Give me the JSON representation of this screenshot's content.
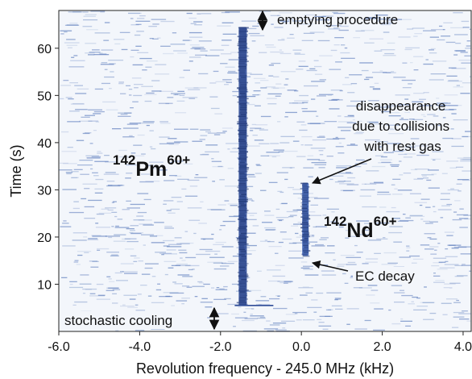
{
  "chart_data": {
    "type": "heatmap",
    "description": "Schottky-spectrum waterfall (revolution frequency vs. time) of stored ions",
    "title": "",
    "xlabel": "Revolution frequency - 245.0 MHz (kHz)",
    "ylabel": "Time (s)",
    "xlim": [
      -6.0,
      4.2
    ],
    "ylim": [
      0,
      68
    ],
    "xticks": [
      "-6.0",
      "-4.0",
      "-2.0",
      "0.0",
      "2.0",
      "4.0"
    ],
    "yticks": [
      "10",
      "20",
      "30",
      "40",
      "50",
      "60"
    ],
    "grid": false,
    "colormap": {
      "low": "#f3f6fb",
      "high": "#2e4a90"
    },
    "series": [
      {
        "label": "142Pm60+",
        "base": "142",
        "element": "Pm",
        "charge": "60+",
        "frequency_khz": -1.45,
        "time_start_s": 5.5,
        "time_end_s": 64.5
      },
      {
        "label": "142Nd60+",
        "base": "142",
        "element": "Nd",
        "charge": "60+",
        "frequency_khz": 0.1,
        "time_start_s": 16,
        "time_end_s": 31.5
      }
    ],
    "annotations": [
      {
        "text": "emptying procedure",
        "type": "double-arrow"
      },
      {
        "text": "stochastic cooling",
        "type": "double-arrow"
      },
      {
        "lines": [
          "disappearance",
          "due to collisions",
          "with rest gas"
        ],
        "type": "arrow"
      },
      {
        "text": "EC decay",
        "type": "arrow"
      }
    ]
  }
}
